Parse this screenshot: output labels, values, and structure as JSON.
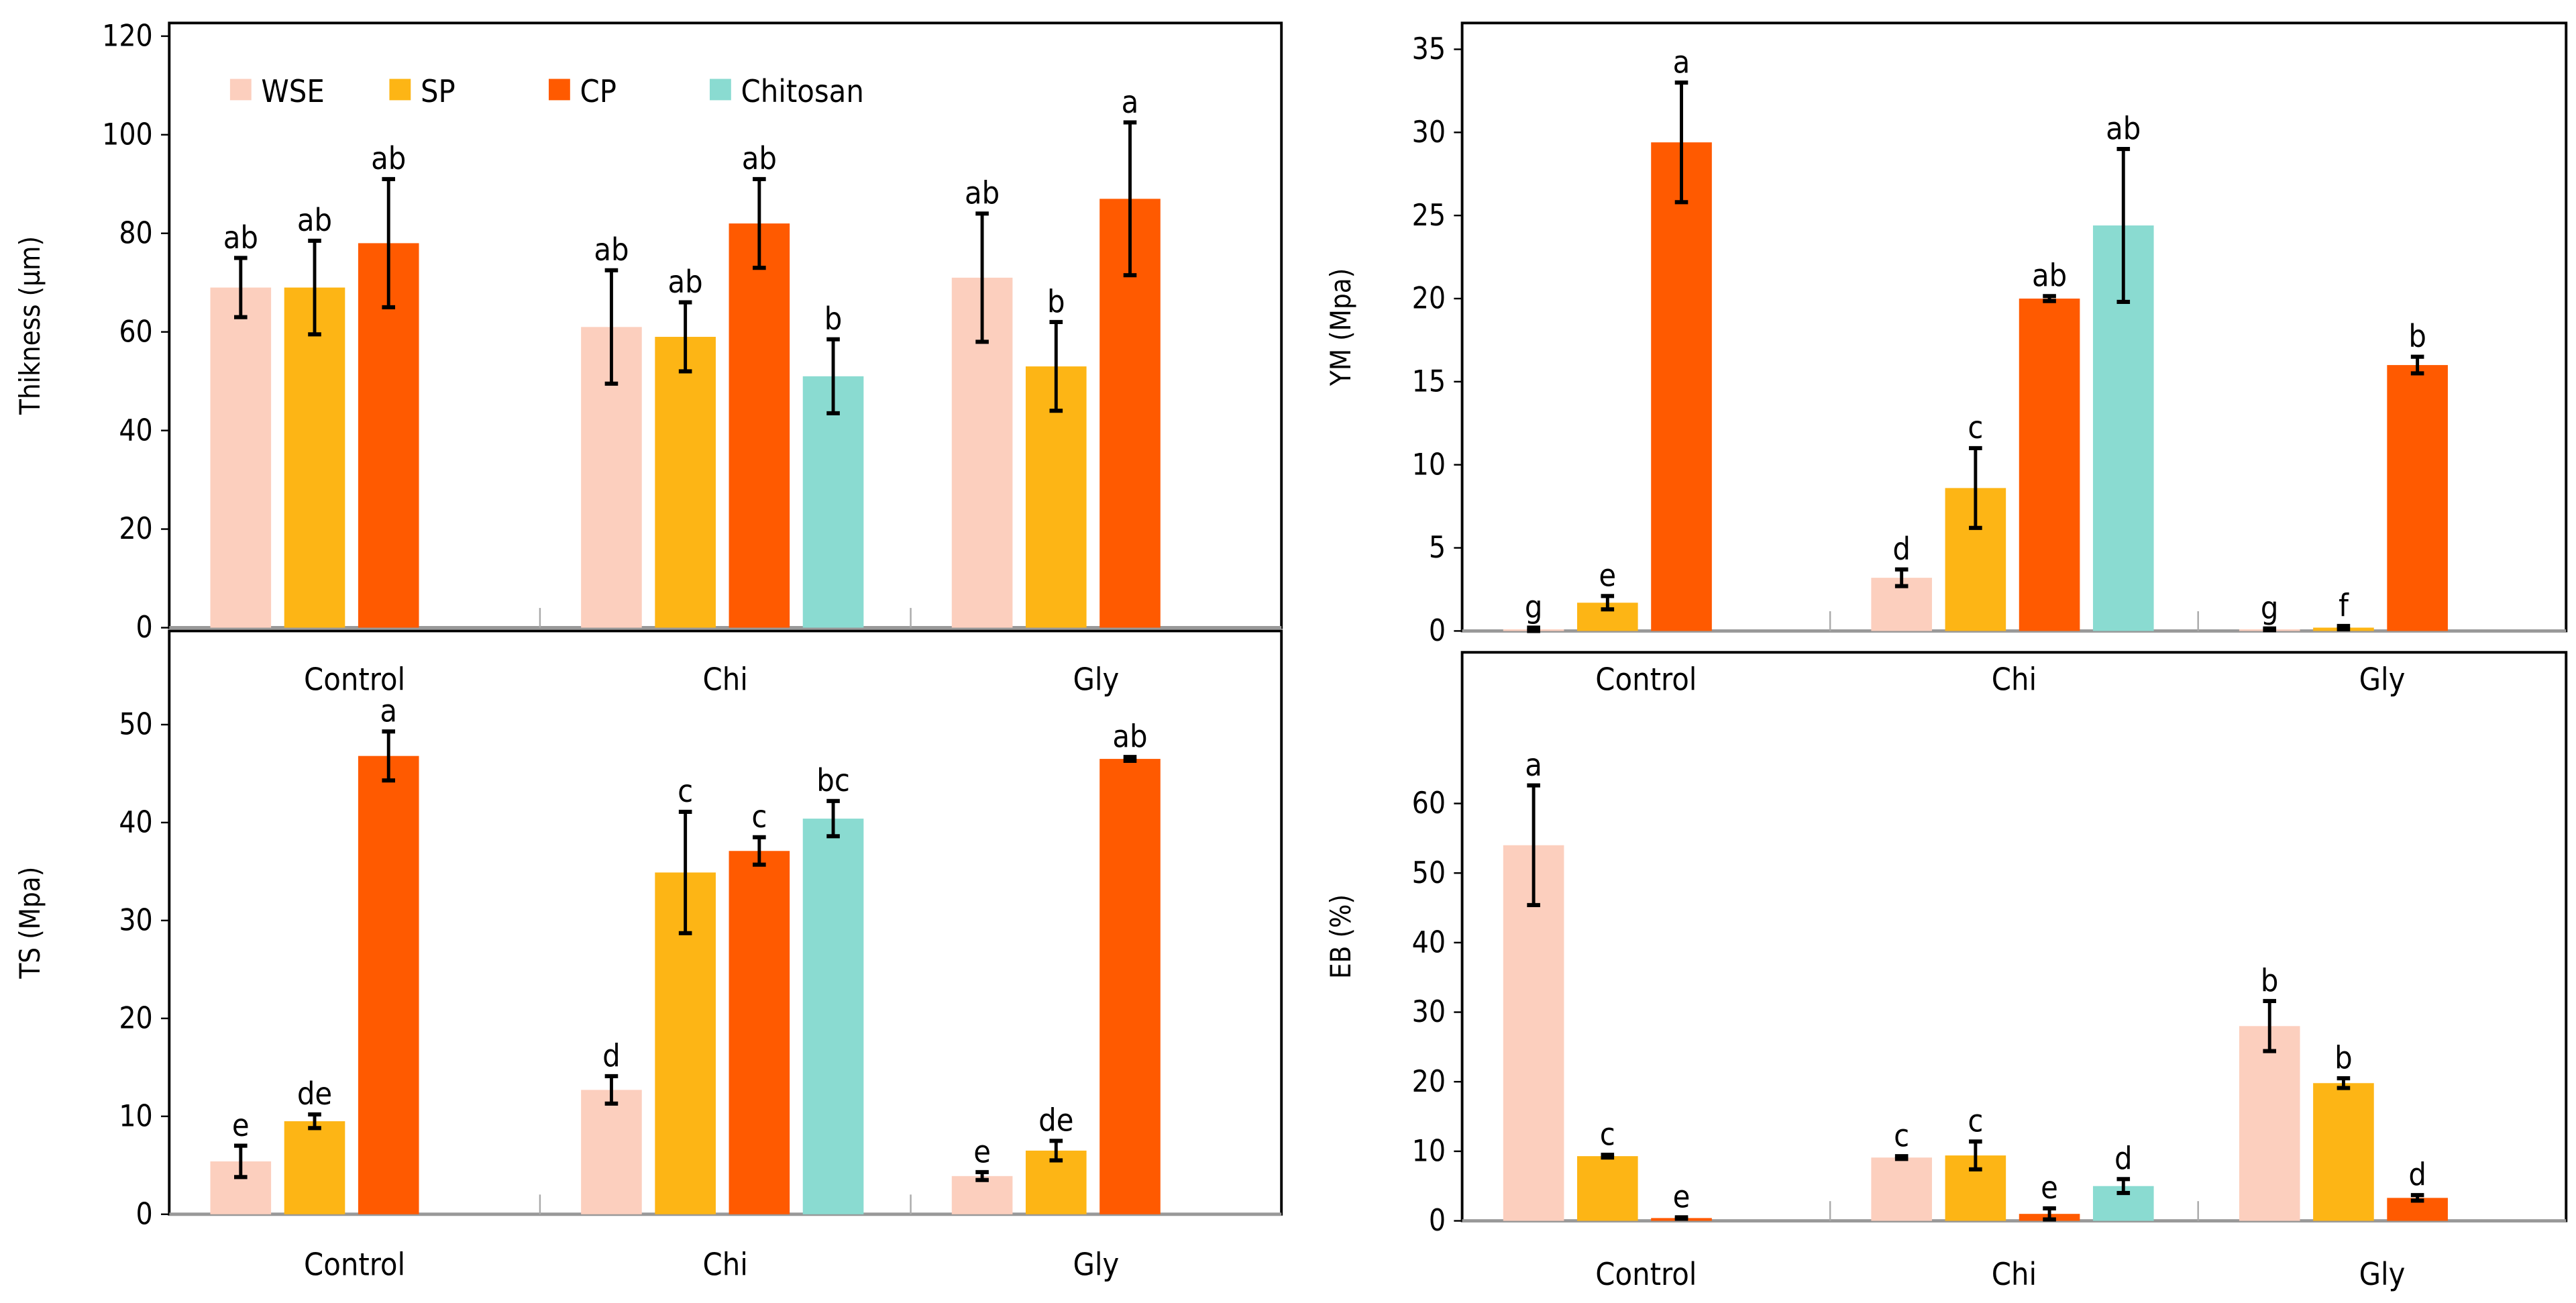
{
  "legend": [
    "WSE",
    "SP",
    "CP",
    "Chitosan"
  ],
  "colors": {
    "WSE": "#FCCFBE",
    "SP": "#FDB515",
    "CP": "#FF5A00",
    "Chitosan": "#8ADBD1"
  },
  "chart_data": [
    {
      "type": "bar",
      "ylabel": "Thikness (µm)",
      "categories": [
        "Control",
        "Chi",
        "Gly"
      ],
      "ylim": [
        0,
        120
      ],
      "yticks": [
        "0",
        "20",
        "40",
        "60",
        "80",
        "100",
        "120"
      ],
      "legend_position": "top-left",
      "series": [
        {
          "name": "WSE",
          "values": [
            69,
            61,
            71
          ],
          "errors": [
            6,
            11.5,
            13
          ],
          "letters": [
            "ab",
            "ab",
            "ab"
          ]
        },
        {
          "name": "SP",
          "values": [
            69,
            59,
            53
          ],
          "errors": [
            9.5,
            7,
            9
          ],
          "letters": [
            "ab",
            "ab",
            "b"
          ]
        },
        {
          "name": "CP",
          "values": [
            78,
            82,
            87
          ],
          "errors": [
            13,
            9,
            15.5
          ],
          "letters": [
            "ab",
            "ab",
            "a"
          ]
        },
        {
          "name": "Chitosan",
          "values": [
            null,
            51,
            null
          ],
          "errors": [
            null,
            7.5,
            null
          ],
          "letters": [
            null,
            "b",
            null
          ]
        }
      ]
    },
    {
      "type": "bar",
      "ylabel": "YM (Mpa)",
      "categories": [
        "Control",
        "Chi",
        "Gly"
      ],
      "ylim": [
        0,
        35
      ],
      "yticks": [
        "0",
        "5",
        "10",
        "15",
        "20",
        "25",
        "30",
        "35"
      ],
      "series": [
        {
          "name": "WSE",
          "values": [
            0.1,
            3.2,
            0.1
          ],
          "errors": [
            0.1,
            0.5,
            0.05
          ],
          "letters": [
            "g",
            "d",
            "g"
          ]
        },
        {
          "name": "SP",
          "values": [
            1.7,
            8.6,
            0.2
          ],
          "errors": [
            0.4,
            2.4,
            0.1
          ],
          "letters": [
            "e",
            "c",
            "f"
          ]
        },
        {
          "name": "CP",
          "values": [
            29.4,
            20.0,
            16.0
          ],
          "errors": [
            3.6,
            0.15,
            0.5
          ],
          "letters": [
            "a",
            "ab",
            "b"
          ]
        },
        {
          "name": "Chitosan",
          "values": [
            null,
            24.4,
            null
          ],
          "errors": [
            null,
            4.6,
            null
          ],
          "letters": [
            null,
            "ab",
            null
          ]
        }
      ]
    },
    {
      "type": "bar",
      "ylabel": "TS (Mpa)",
      "categories": [
        "Control",
        "Chi",
        "Gly"
      ],
      "ylim": [
        0,
        50
      ],
      "yticks": [
        "0",
        "10",
        "20",
        "30",
        "40",
        "50"
      ],
      "series": [
        {
          "name": "WSE",
          "values": [
            5.4,
            12.7,
            3.9
          ],
          "errors": [
            1.6,
            1.4,
            0.4
          ],
          "letters": [
            "e",
            "d",
            "e"
          ]
        },
        {
          "name": "SP",
          "values": [
            9.5,
            34.9,
            6.5
          ],
          "errors": [
            0.7,
            6.2,
            1.0
          ],
          "letters": [
            "de",
            "c",
            "de"
          ]
        },
        {
          "name": "CP",
          "values": [
            46.8,
            37.1,
            46.5
          ],
          "errors": [
            2.5,
            1.4,
            0.2
          ],
          "letters": [
            "a",
            "c",
            "ab"
          ]
        },
        {
          "name": "Chitosan",
          "values": [
            null,
            40.4,
            null
          ],
          "errors": [
            null,
            1.8,
            null
          ],
          "letters": [
            null,
            "bc",
            null
          ]
        }
      ]
    },
    {
      "type": "bar",
      "ylabel": "EB (%)",
      "categories": [
        "Control",
        "Chi",
        "Gly"
      ],
      "ylim": [
        0,
        60
      ],
      "yticks": [
        "0",
        "10",
        "20",
        "30",
        "40",
        "50",
        "60"
      ],
      "series": [
        {
          "name": "WSE",
          "values": [
            54,
            9.1,
            28
          ],
          "errors": [
            8.6,
            0.2,
            3.6
          ],
          "letters": [
            "a",
            "c",
            "b"
          ]
        },
        {
          "name": "SP",
          "values": [
            9.3,
            9.4,
            19.8
          ],
          "errors": [
            0.2,
            2.0,
            0.7
          ],
          "letters": [
            "c",
            "c",
            "b"
          ]
        },
        {
          "name": "CP",
          "values": [
            0.4,
            1.0,
            3.3
          ],
          "errors": [
            0.1,
            0.8,
            0.4
          ],
          "letters": [
            "e",
            "e",
            "d"
          ]
        },
        {
          "name": "Chitosan",
          "values": [
            null,
            5.0,
            null
          ],
          "errors": [
            null,
            1.0,
            null
          ],
          "letters": [
            null,
            "d",
            null
          ]
        }
      ]
    }
  ]
}
